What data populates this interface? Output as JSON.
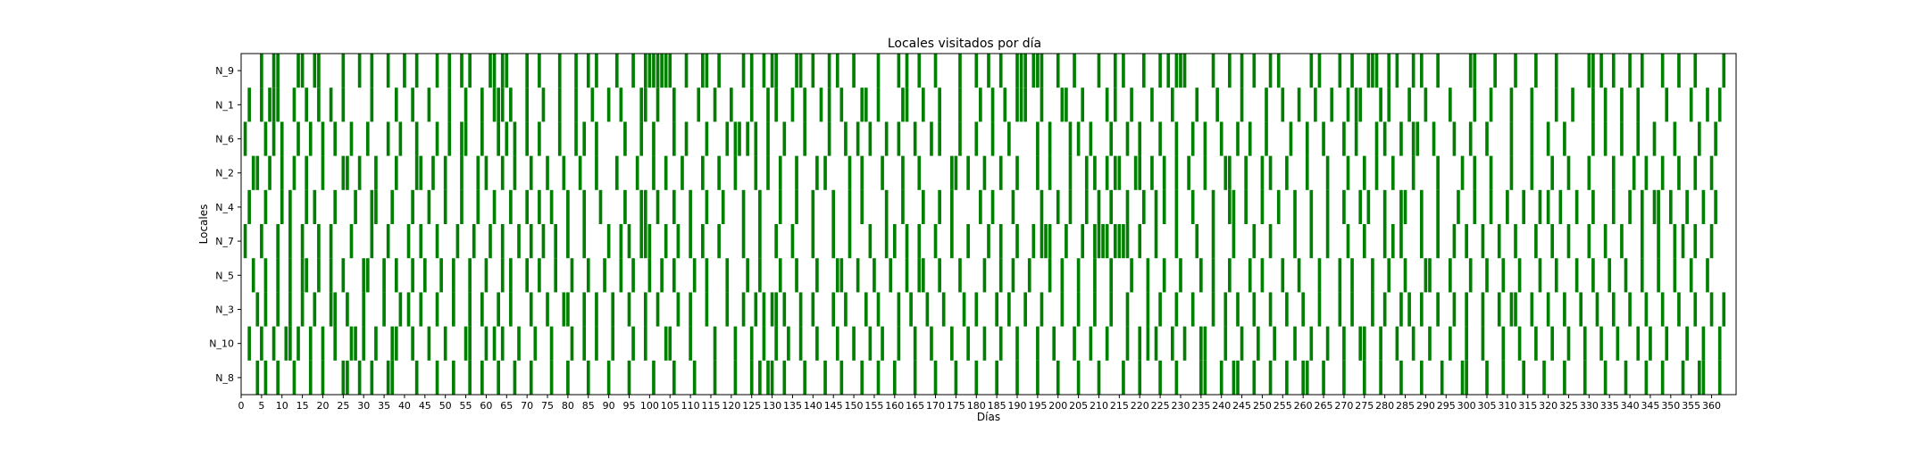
{
  "chart_data": {
    "type": "heatmap",
    "title": "Locales visitados por día",
    "xlabel": "Días",
    "ylabel": "Locales",
    "xlim": [
      0,
      366
    ],
    "bar_color": "#008000",
    "x_ticks": [
      0,
      5,
      10,
      15,
      20,
      25,
      30,
      35,
      40,
      45,
      50,
      55,
      60,
      65,
      70,
      75,
      80,
      85,
      90,
      95,
      100,
      105,
      110,
      115,
      120,
      125,
      130,
      135,
      140,
      145,
      150,
      155,
      160,
      165,
      170,
      175,
      180,
      185,
      190,
      195,
      200,
      205,
      210,
      215,
      220,
      225,
      230,
      235,
      240,
      245,
      250,
      255,
      260,
      265,
      270,
      275,
      280,
      285,
      290,
      295,
      300,
      305,
      310,
      315,
      320,
      325,
      330,
      335,
      340,
      345,
      350,
      355,
      360
    ],
    "categories": [
      "N_9",
      "N_1",
      "N_6",
      "N_2",
      "N_4",
      "N_7",
      "N_5",
      "N_3",
      "N_10",
      "N_8"
    ],
    "series": [
      {
        "category": "N_9",
        "days": [
          5,
          8,
          9,
          14,
          15,
          18,
          19,
          25,
          29,
          32,
          36,
          40,
          43,
          48,
          51,
          54,
          56,
          61,
          62,
          64,
          65,
          70,
          73,
          78,
          82,
          85,
          87,
          92,
          96,
          99,
          100,
          101,
          102,
          103,
          104,
          105,
          109,
          113,
          114,
          117,
          123,
          125,
          128,
          130,
          131,
          136,
          137,
          140,
          144,
          146,
          150,
          156,
          161,
          163,
          166,
          170,
          176,
          180,
          183,
          186,
          190,
          191,
          192,
          194,
          195,
          196,
          200,
          204,
          210,
          214,
          216,
          221,
          225,
          227,
          229,
          230,
          231,
          238,
          242,
          245,
          248,
          252,
          254,
          262,
          264,
          269,
          272,
          276,
          277,
          278,
          281,
          283,
          287,
          289,
          293,
          301,
          302,
          307,
          312,
          317,
          322,
          330,
          331,
          333,
          336,
          340,
          343,
          348,
          352,
          356,
          363
        ]
      },
      {
        "category": "N_1",
        "days": [
          2,
          5,
          7,
          8,
          9,
          13,
          16,
          19,
          22,
          25,
          32,
          38,
          42,
          46,
          51,
          55,
          59,
          62,
          63,
          64,
          66,
          70,
          74,
          78,
          82,
          86,
          90,
          93,
          98,
          99,
          102,
          106,
          112,
          116,
          120,
          125,
          129,
          131,
          135,
          138,
          142,
          144,
          147,
          152,
          153,
          156,
          162,
          163,
          167,
          171,
          176,
          181,
          184,
          187,
          190,
          191,
          192,
          196,
          201,
          202,
          206,
          212,
          214,
          218,
          223,
          228,
          234,
          239,
          245,
          251,
          255,
          259,
          263,
          267,
          271,
          273,
          274,
          279,
          281,
          286,
          290,
          296,
          302,
          306,
          311,
          316,
          322,
          326,
          331,
          334,
          338,
          342,
          349,
          355,
          359,
          362
        ]
      },
      {
        "category": "N_6",
        "days": [
          1,
          6,
          8,
          10,
          14,
          17,
          20,
          23,
          27,
          31,
          36,
          39,
          43,
          48,
          51,
          54,
          55,
          59,
          63,
          65,
          67,
          70,
          73,
          78,
          82,
          84,
          87,
          94,
          98,
          101,
          106,
          109,
          114,
          119,
          121,
          122,
          124,
          126,
          129,
          133,
          138,
          144,
          148,
          151,
          154,
          158,
          161,
          165,
          169,
          171,
          176,
          180,
          184,
          188,
          195,
          198,
          203,
          205,
          208,
          213,
          217,
          220,
          225,
          229,
          233,
          236,
          240,
          244,
          247,
          251,
          257,
          261,
          265,
          270,
          273,
          278,
          280,
          284,
          287,
          288,
          292,
          297,
          301,
          305,
          311,
          316,
          320,
          324,
          331,
          334,
          338,
          342,
          346,
          351,
          357,
          361
        ]
      },
      {
        "category": "N_2",
        "days": [
          3,
          4,
          7,
          10,
          13,
          16,
          20,
          25,
          26,
          29,
          33,
          38,
          43,
          44,
          47,
          50,
          54,
          58,
          60,
          64,
          67,
          71,
          75,
          79,
          83,
          87,
          92,
          97,
          101,
          104,
          108,
          113,
          117,
          121,
          126,
          129,
          132,
          136,
          141,
          143,
          149,
          152,
          157,
          162,
          166,
          174,
          175,
          178,
          182,
          186,
          190,
          195,
          198,
          203,
          207,
          209,
          212,
          214,
          215,
          219,
          220,
          223,
          226,
          229,
          232,
          236,
          241,
          242,
          246,
          250,
          252,
          256,
          261,
          266,
          271,
          275,
          278,
          282,
          287,
          293,
          299,
          302,
          306,
          311,
          316,
          321,
          325,
          330,
          336,
          341,
          344,
          348,
          352,
          356,
          360
        ]
      },
      {
        "category": "N_4",
        "days": [
          2,
          6,
          10,
          12,
          16,
          18,
          23,
          28,
          32,
          33,
          37,
          42,
          46,
          50,
          54,
          58,
          62,
          66,
          70,
          73,
          76,
          80,
          84,
          88,
          94,
          98,
          99,
          102,
          106,
          110,
          114,
          118,
          123,
          127,
          132,
          136,
          140,
          145,
          149,
          152,
          158,
          162,
          167,
          171,
          174,
          181,
          184,
          189,
          196,
          200,
          203,
          207,
          210,
          213,
          217,
          221,
          224,
          226,
          229,
          233,
          238,
          242,
          243,
          246,
          250,
          254,
          258,
          262,
          266,
          270,
          274,
          276,
          280,
          284,
          285,
          289,
          293,
          298,
          302,
          306,
          310,
          314,
          318,
          320,
          323,
          327,
          331,
          336,
          340,
          343,
          346,
          347,
          350,
          354,
          358,
          361
        ]
      },
      {
        "category": "N_7",
        "days": [
          1,
          5,
          9,
          12,
          15,
          19,
          22,
          27,
          32,
          36,
          41,
          44,
          48,
          53,
          57,
          61,
          64,
          68,
          71,
          74,
          77,
          80,
          84,
          90,
          93,
          95,
          98,
          99,
          100,
          104,
          107,
          110,
          113,
          117,
          123,
          127,
          131,
          135,
          140,
          145,
          149,
          154,
          158,
          160,
          163,
          166,
          170,
          174,
          178,
          183,
          186,
          190,
          194,
          196,
          197,
          198,
          202,
          206,
          209,
          210,
          211,
          212,
          214,
          215,
          216,
          217,
          220,
          224,
          229,
          234,
          238,
          243,
          248,
          252,
          258,
          262,
          266,
          271,
          275,
          280,
          282,
          284,
          289,
          293,
          297,
          300,
          304,
          308,
          312,
          317,
          321,
          325,
          330,
          334,
          338,
          343,
          347,
          351,
          353,
          356,
          360
        ]
      },
      {
        "category": "N_5",
        "days": [
          3,
          6,
          9,
          12,
          15,
          16,
          19,
          22,
          25,
          30,
          31,
          35,
          38,
          42,
          45,
          49,
          52,
          56,
          60,
          64,
          66,
          70,
          73,
          77,
          81,
          85,
          89,
          93,
          96,
          100,
          103,
          106,
          111,
          114,
          119,
          124,
          127,
          132,
          136,
          141,
          146,
          147,
          151,
          155,
          159,
          163,
          166,
          167,
          171,
          176,
          182,
          186,
          189,
          193,
          198,
          201,
          205,
          209,
          213,
          218,
          222,
          226,
          230,
          235,
          238,
          242,
          247,
          250,
          255,
          259,
          264,
          269,
          272,
          277,
          281,
          285,
          290,
          291,
          296,
          301,
          305,
          309,
          313,
          318,
          322,
          327,
          331,
          335,
          339,
          343,
          347,
          351,
          355,
          359
        ]
      },
      {
        "category": "N_3",
        "days": [
          4,
          6,
          9,
          12,
          15,
          18,
          22,
          23,
          26,
          30,
          35,
          39,
          41,
          44,
          48,
          52,
          56,
          59,
          63,
          66,
          71,
          75,
          79,
          80,
          84,
          87,
          91,
          95,
          99,
          102,
          107,
          110,
          114,
          119,
          123,
          126,
          128,
          130,
          131,
          133,
          137,
          140,
          145,
          148,
          153,
          156,
          161,
          164,
          168,
          172,
          177,
          180,
          185,
          188,
          192,
          196,
          201,
          205,
          209,
          213,
          217,
          222,
          225,
          229,
          233,
          238,
          241,
          244,
          248,
          252,
          256,
          260,
          264,
          269,
          272,
          277,
          280,
          284,
          286,
          289,
          293,
          297,
          300,
          304,
          308,
          311,
          312,
          316,
          320,
          324,
          328,
          332,
          336,
          340,
          344,
          348,
          352,
          356,
          360,
          363
        ]
      },
      {
        "category": "N_10",
        "days": [
          2,
          5,
          8,
          11,
          12,
          14,
          17,
          20,
          23,
          27,
          28,
          30,
          33,
          37,
          38,
          42,
          46,
          50,
          55,
          56,
          60,
          62,
          64,
          68,
          72,
          76,
          81,
          84,
          87,
          91,
          96,
          99,
          104,
          105,
          110,
          116,
          121,
          125,
          128,
          131,
          134,
          137,
          141,
          146,
          150,
          154,
          157,
          161,
          165,
          169,
          174,
          178,
          182,
          186,
          190,
          195,
          199,
          204,
          208,
          212,
          217,
          220,
          222,
          224,
          228,
          231,
          235,
          236,
          241,
          245,
          249,
          253,
          258,
          262,
          266,
          270,
          274,
          275,
          279,
          283,
          287,
          291,
          296,
          300,
          304,
          309,
          313,
          317,
          321,
          325,
          329,
          333,
          337,
          342,
          345,
          349,
          354,
          358,
          362
        ]
      },
      {
        "category": "N_8",
        "days": [
          4,
          6,
          9,
          13,
          17,
          20,
          25,
          26,
          29,
          32,
          36,
          37,
          43,
          48,
          52,
          56,
          59,
          63,
          67,
          71,
          76,
          80,
          85,
          90,
          95,
          101,
          106,
          111,
          116,
          121,
          125,
          127,
          129,
          130,
          133,
          138,
          143,
          147,
          152,
          156,
          160,
          165,
          170,
          175,
          180,
          185,
          190,
          195,
          200,
          205,
          210,
          216,
          220,
          225,
          229,
          235,
          236,
          240,
          243,
          244,
          248,
          252,
          256,
          260,
          261,
          265,
          270,
          275,
          279,
          284,
          289,
          294,
          299,
          300,
          305,
          309,
          314,
          319,
          324,
          329,
          334,
          339,
          344,
          348,
          353,
          357,
          358,
          362
        ]
      }
    ]
  }
}
